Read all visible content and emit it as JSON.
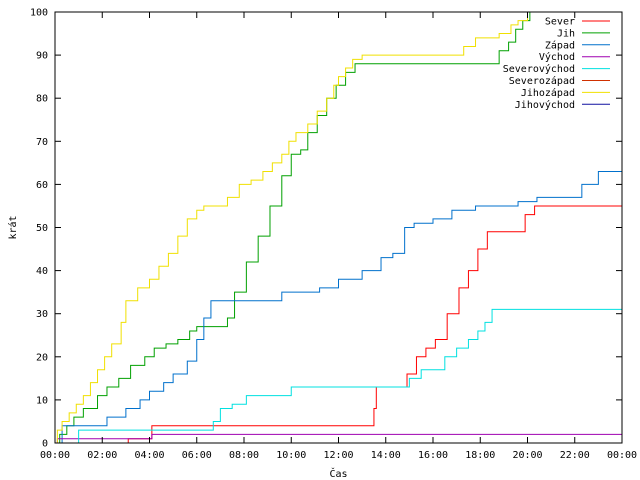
{
  "chart_data": {
    "type": "line",
    "xlabel": "Čas",
    "ylabel": "krát",
    "x_ticks": [
      "00:00",
      "02:00",
      "04:00",
      "06:00",
      "08:00",
      "10:00",
      "12:00",
      "14:00",
      "16:00",
      "18:00",
      "20:00",
      "22:00",
      "00:00"
    ],
    "xlim": [
      0,
      24
    ],
    "ylim": [
      0,
      100
    ],
    "y_ticks": [
      0,
      10,
      20,
      30,
      40,
      50,
      60,
      70,
      80,
      90,
      100
    ],
    "grid": false,
    "legend_position": "top-right",
    "series": [
      {
        "name": "Sever",
        "color": "#ff0000",
        "x": [
          0,
          3.1,
          3.1,
          4.1,
          4.1,
          13.2,
          13.5,
          13.6,
          14.1,
          14.9,
          15.3,
          15.7,
          16.1,
          16.6,
          17.1,
          17.5,
          17.9,
          18.3,
          18.6,
          19.0,
          19.9,
          20.3,
          20.5,
          24.0
        ],
        "y": [
          0,
          0,
          1,
          1,
          4,
          4,
          8,
          13,
          13,
          16,
          20,
          22,
          24,
          30,
          36,
          40,
          45,
          49,
          49,
          49,
          53,
          55,
          55,
          55
        ]
      },
      {
        "name": "Jih",
        "color": "#00a000",
        "x": [
          0,
          0.2,
          0.5,
          0.8,
          1.2,
          1.8,
          2.2,
          2.7,
          3.2,
          3.8,
          4.2,
          4.7,
          5.2,
          5.7,
          6.0,
          6.5,
          7.0,
          7.3,
          7.6,
          8.1,
          8.6,
          9.1,
          9.6,
          10.0,
          10.4,
          10.7,
          11.1,
          11.5,
          11.9,
          12.3,
          12.7,
          13.0,
          18.5,
          18.8,
          19.2,
          19.5,
          19.8,
          20.1,
          20.2
        ],
        "y": [
          0,
          2,
          4,
          6,
          8,
          11,
          13,
          15,
          18,
          20,
          22,
          23,
          24,
          26,
          27,
          27,
          27,
          29,
          35,
          42,
          48,
          55,
          62,
          67,
          68,
          72,
          76,
          80,
          83,
          86,
          88,
          88,
          88,
          91,
          93,
          96,
          98,
          100,
          100
        ]
      },
      {
        "name": "Západ",
        "color": "#0070cc",
        "x": [
          0,
          0.3,
          1.0,
          2.2,
          3.0,
          3.6,
          4.0,
          4.6,
          5.0,
          5.6,
          6.0,
          6.3,
          6.6,
          7.0,
          9.6,
          10.3,
          11.2,
          12.0,
          13.0,
          13.8,
          14.3,
          14.8,
          15.2,
          16.0,
          16.8,
          17.8,
          18.5,
          19.6,
          20.4,
          22.0,
          22.3,
          23.0,
          24.0
        ],
        "y": [
          0,
          4,
          4,
          6,
          8,
          10,
          12,
          14,
          16,
          19,
          24,
          29,
          33,
          33,
          35,
          35,
          36,
          38,
          40,
          43,
          44,
          50,
          51,
          52,
          54,
          55,
          55,
          56,
          57,
          57,
          60,
          63,
          63
        ]
      },
      {
        "name": "Východ",
        "color": "#9f00b0",
        "x": [
          0,
          0.1,
          4.1,
          4.1,
          24.0
        ],
        "y": [
          0,
          1,
          1,
          2,
          2
        ]
      },
      {
        "name": "Severovýchod",
        "color": "#00e0e0",
        "x": [
          0,
          0.9,
          1.0,
          3.5,
          4.0,
          6.7,
          7.0,
          7.5,
          8.1,
          9.0,
          10.0,
          14.5,
          15.0,
          15.5,
          16.5,
          17.0,
          17.5,
          17.9,
          18.2,
          18.5,
          24.0
        ],
        "y": [
          0,
          0,
          3,
          3,
          3,
          5,
          8,
          9,
          11,
          11,
          13,
          13,
          15,
          17,
          20,
          22,
          24,
          26,
          28,
          31,
          31
        ]
      },
      {
        "name": "Severozápad",
        "color": "#d03000",
        "x": [
          0,
          24
        ],
        "y": [
          0,
          0
        ]
      },
      {
        "name": "Jihozápad",
        "color": "#f0e000",
        "x": [
          0,
          0.1,
          0.3,
          0.6,
          0.9,
          1.2,
          1.5,
          1.8,
          2.1,
          2.4,
          2.8,
          3.0,
          3.5,
          4.0,
          4.4,
          4.8,
          5.2,
          5.6,
          6.0,
          6.3,
          6.8,
          7.3,
          7.8,
          8.3,
          8.8,
          9.2,
          9.6,
          9.9,
          10.2,
          10.7,
          11.1,
          11.5,
          11.8,
          12.0,
          12.3,
          12.6,
          13.0,
          16.9,
          17.3,
          17.8,
          18.3,
          18.8,
          19.3,
          19.6,
          20.0,
          20.4
        ],
        "y": [
          0,
          3,
          5,
          7,
          9,
          11,
          14,
          17,
          20,
          23,
          28,
          33,
          36,
          38,
          41,
          44,
          48,
          52,
          54,
          55,
          55,
          57,
          60,
          61,
          63,
          65,
          67,
          70,
          72,
          74,
          77,
          80,
          83,
          85,
          87,
          89,
          90,
          90,
          92,
          94,
          94,
          95,
          97,
          98,
          100,
          100
        ]
      },
      {
        "name": "Jihovýchod",
        "color": "#1010a0",
        "x": [
          0,
          24
        ],
        "y": [
          0,
          0
        ]
      }
    ]
  }
}
